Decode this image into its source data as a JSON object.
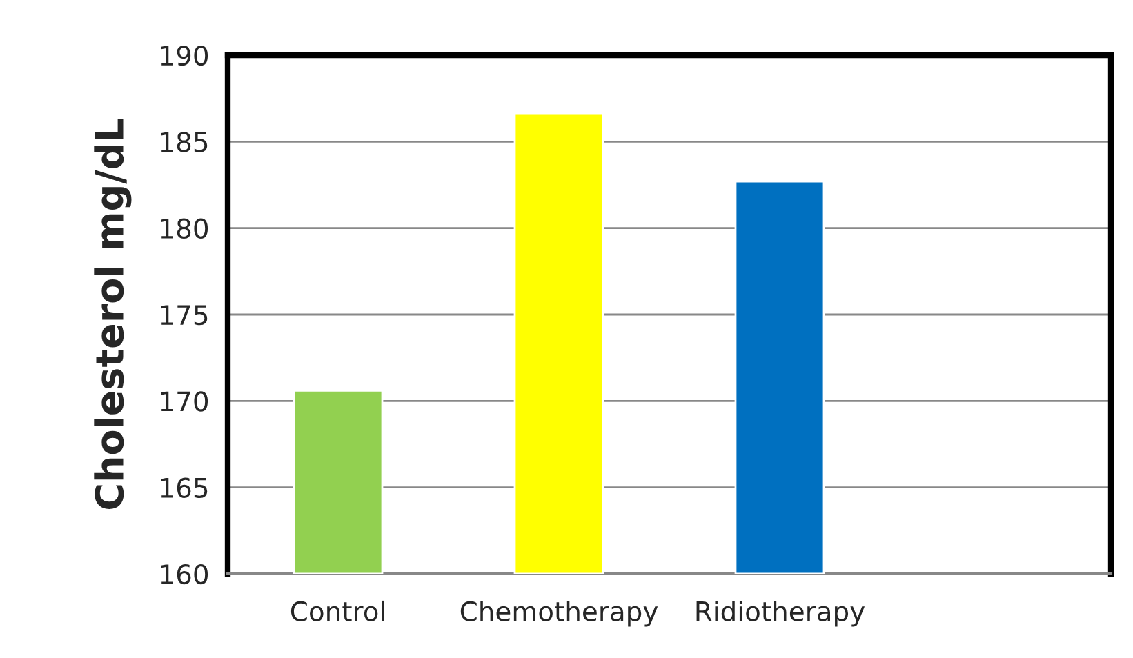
{
  "chart_data": {
    "type": "bar",
    "ylabel": "Cholesterol mg/dL",
    "categories": [
      "Control",
      "Chemotherapy",
      "Ridiotherapy",
      null
    ],
    "values": [
      170.6,
      186.6,
      182.7,
      null
    ],
    "colors": [
      "#92d050",
      "#ffff00",
      "#0070c0",
      "#000000"
    ],
    "ylim": [
      160,
      190
    ],
    "yticks": [
      160,
      165,
      170,
      175,
      180,
      185,
      190
    ],
    "grid": "y"
  }
}
